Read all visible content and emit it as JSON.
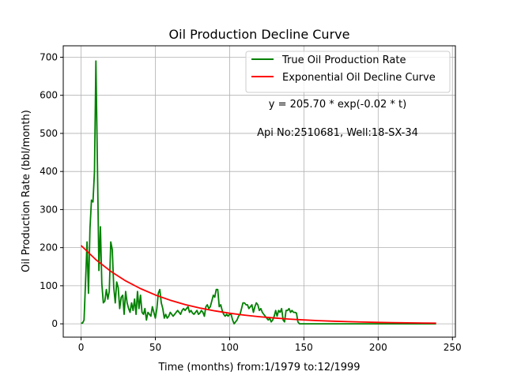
{
  "chart_data": {
    "type": "line",
    "title": "Oil Production Decline Curve",
    "xlabel": "Time (months) from:1/1979 to:12/1999",
    "ylabel": "Oil Production Rate (bbl/month)",
    "xlim": [
      -12,
      252
    ],
    "ylim": [
      -35,
      730
    ],
    "x_ticks": [
      0,
      50,
      100,
      150,
      200,
      250
    ],
    "y_ticks": [
      0,
      100,
      200,
      300,
      400,
      500,
      600,
      700
    ],
    "grid": true,
    "legend_position": "top-right",
    "annotations": [
      "y = 205.70 * exp(-0.02 * t)",
      "Api No:2510681, Well:18-SX-34"
    ],
    "series": [
      {
        "name": "True Oil Production Rate",
        "color": "#008000",
        "x": [
          0,
          1,
          2,
          3,
          4,
          5,
          6,
          7,
          8,
          9,
          10,
          11,
          12,
          13,
          14,
          15,
          16,
          17,
          18,
          19,
          20,
          21,
          22,
          23,
          24,
          25,
          26,
          27,
          28,
          29,
          30,
          31,
          32,
          33,
          34,
          35,
          36,
          37,
          38,
          39,
          40,
          41,
          42,
          43,
          44,
          45,
          46,
          47,
          48,
          49,
          50,
          51,
          52,
          53,
          54,
          55,
          56,
          57,
          58,
          59,
          60,
          61,
          62,
          63,
          64,
          65,
          66,
          67,
          68,
          69,
          70,
          71,
          72,
          73,
          74,
          75,
          76,
          77,
          78,
          79,
          80,
          81,
          82,
          83,
          84,
          85,
          86,
          87,
          88,
          89,
          90,
          91,
          92,
          93,
          94,
          95,
          96,
          97,
          98,
          99,
          100,
          101,
          102,
          103,
          104,
          105,
          106,
          107,
          108,
          109,
          110,
          111,
          112,
          113,
          114,
          115,
          116,
          117,
          118,
          119,
          120,
          121,
          122,
          123,
          124,
          125,
          126,
          127,
          128,
          129,
          130,
          131,
          132,
          133,
          134,
          135,
          136,
          137,
          138,
          139,
          140,
          141,
          142,
          143,
          144,
          145,
          146,
          147,
          148,
          149,
          150,
          151,
          152,
          153,
          154,
          155,
          156,
          157,
          158,
          159,
          160,
          170,
          180,
          190,
          200,
          210,
          220,
          230,
          239
        ],
        "values": [
          2,
          2,
          10,
          110,
          215,
          80,
          250,
          325,
          320,
          400,
          690,
          420,
          140,
          255,
          105,
          55,
          60,
          90,
          65,
          85,
          215,
          195,
          95,
          55,
          110,
          95,
          40,
          70,
          75,
          25,
          85,
          55,
          40,
          30,
          55,
          35,
          65,
          25,
          85,
          40,
          75,
          30,
          25,
          40,
          10,
          30,
          25,
          20,
          45,
          30,
          15,
          40,
          80,
          90,
          55,
          40,
          15,
          25,
          15,
          20,
          30,
          25,
          20,
          25,
          30,
          35,
          30,
          25,
          35,
          40,
          35,
          40,
          45,
          30,
          35,
          28,
          25,
          30,
          35,
          25,
          28,
          35,
          30,
          20,
          45,
          50,
          40,
          45,
          60,
          75,
          70,
          90,
          90,
          45,
          50,
          35,
          25,
          20,
          25,
          20,
          25,
          25,
          10,
          0,
          5,
          10,
          20,
          25,
          40,
          55,
          55,
          50,
          50,
          40,
          45,
          50,
          30,
          45,
          55,
          50,
          35,
          40,
          30,
          25,
          20,
          15,
          10,
          15,
          5,
          10,
          20,
          35,
          20,
          35,
          30,
          40,
          10,
          5,
          35,
          35,
          40,
          30,
          35,
          30,
          30,
          28,
          5,
          0,
          0,
          0,
          0,
          0,
          0,
          0,
          0,
          0,
          0,
          0,
          0,
          0,
          0,
          0,
          0,
          0,
          0,
          0,
          0,
          0,
          0
        ]
      },
      {
        "name": "Exponential Oil Decline Curve",
        "color": "#ff0000",
        "equation": {
          "a": 205.7,
          "b": -0.02
        },
        "x": [
          0,
          10,
          20,
          30,
          40,
          50,
          60,
          70,
          80,
          90,
          100,
          110,
          120,
          130,
          140,
          150,
          160,
          170,
          180,
          190,
          200,
          210,
          220,
          230,
          239
        ],
        "values": [
          205.7,
          168.4,
          137.9,
          112.9,
          92.4,
          75.7,
          62.0,
          50.7,
          41.5,
          34.0,
          27.8,
          22.8,
          18.7,
          15.3,
          12.5,
          10.2,
          8.4,
          6.9,
          5.6,
          4.6,
          3.8,
          3.1,
          2.5,
          2.1,
          1.7
        ]
      }
    ]
  }
}
